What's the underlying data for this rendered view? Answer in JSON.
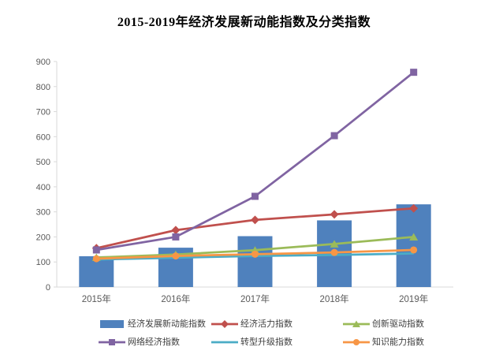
{
  "title": "2015-2019年经济发展新动能指数及分类指数",
  "chart_data": {
    "type": "combo-bar-line",
    "title": "2015-2019年经济发展新动能指数及分类指数",
    "categories": [
      "2015年",
      "2016年",
      "2017年",
      "2018年",
      "2019年"
    ],
    "series": [
      {
        "name": "经济发展新动能指数",
        "slug": "new-momentum-index",
        "type": "bar",
        "marker": "none",
        "color": "#4F81BD",
        "values": [
          123,
          157,
          203,
          266,
          330
        ]
      },
      {
        "name": "经济活力指数",
        "slug": "economic-vitality",
        "type": "line",
        "marker": "diamond",
        "color": "#C0504D",
        "values": [
          155,
          227,
          268,
          290,
          314
        ]
      },
      {
        "name": "创新驱动指数",
        "slug": "innovation-driven",
        "type": "line",
        "marker": "triangle",
        "color": "#9BBB59",
        "values": [
          118,
          130,
          147,
          172,
          200
        ]
      },
      {
        "name": "网络经济指数",
        "slug": "network-economy",
        "type": "line",
        "marker": "square",
        "color": "#8064A2",
        "values": [
          148,
          200,
          362,
          604,
          857
        ]
      },
      {
        "name": "转型升级指数",
        "slug": "transformation-upgrade",
        "type": "line",
        "marker": "none",
        "color": "#4BACC6",
        "values": [
          110,
          117,
          124,
          128,
          134
        ]
      },
      {
        "name": "知识能力指数",
        "slug": "knowledge-capability",
        "type": "line",
        "marker": "circle",
        "color": "#F79646",
        "values": [
          113,
          124,
          131,
          138,
          148
        ]
      }
    ],
    "y_axis": {
      "min": 0,
      "max": 900,
      "step": 100,
      "tick_labels": [
        "0",
        "100",
        "200",
        "300",
        "400",
        "500",
        "600",
        "700",
        "800",
        "900"
      ]
    },
    "x_axis": {
      "tick_labels": [
        "2015年",
        "2016年",
        "2017年",
        "2018年",
        "2019年"
      ]
    },
    "grid": false,
    "legend_position": "bottom",
    "legend_rows": [
      [
        "经济发展新动能指数",
        "经济活力指数",
        "创新驱动指数"
      ],
      [
        "网络经济指数",
        "转型升级指数",
        "知识能力指数"
      ]
    ],
    "colors": {
      "axis_line": "#D9D9D9",
      "axis_label": "#595959",
      "legend_text": "#404040",
      "title_text": "#000000"
    }
  }
}
